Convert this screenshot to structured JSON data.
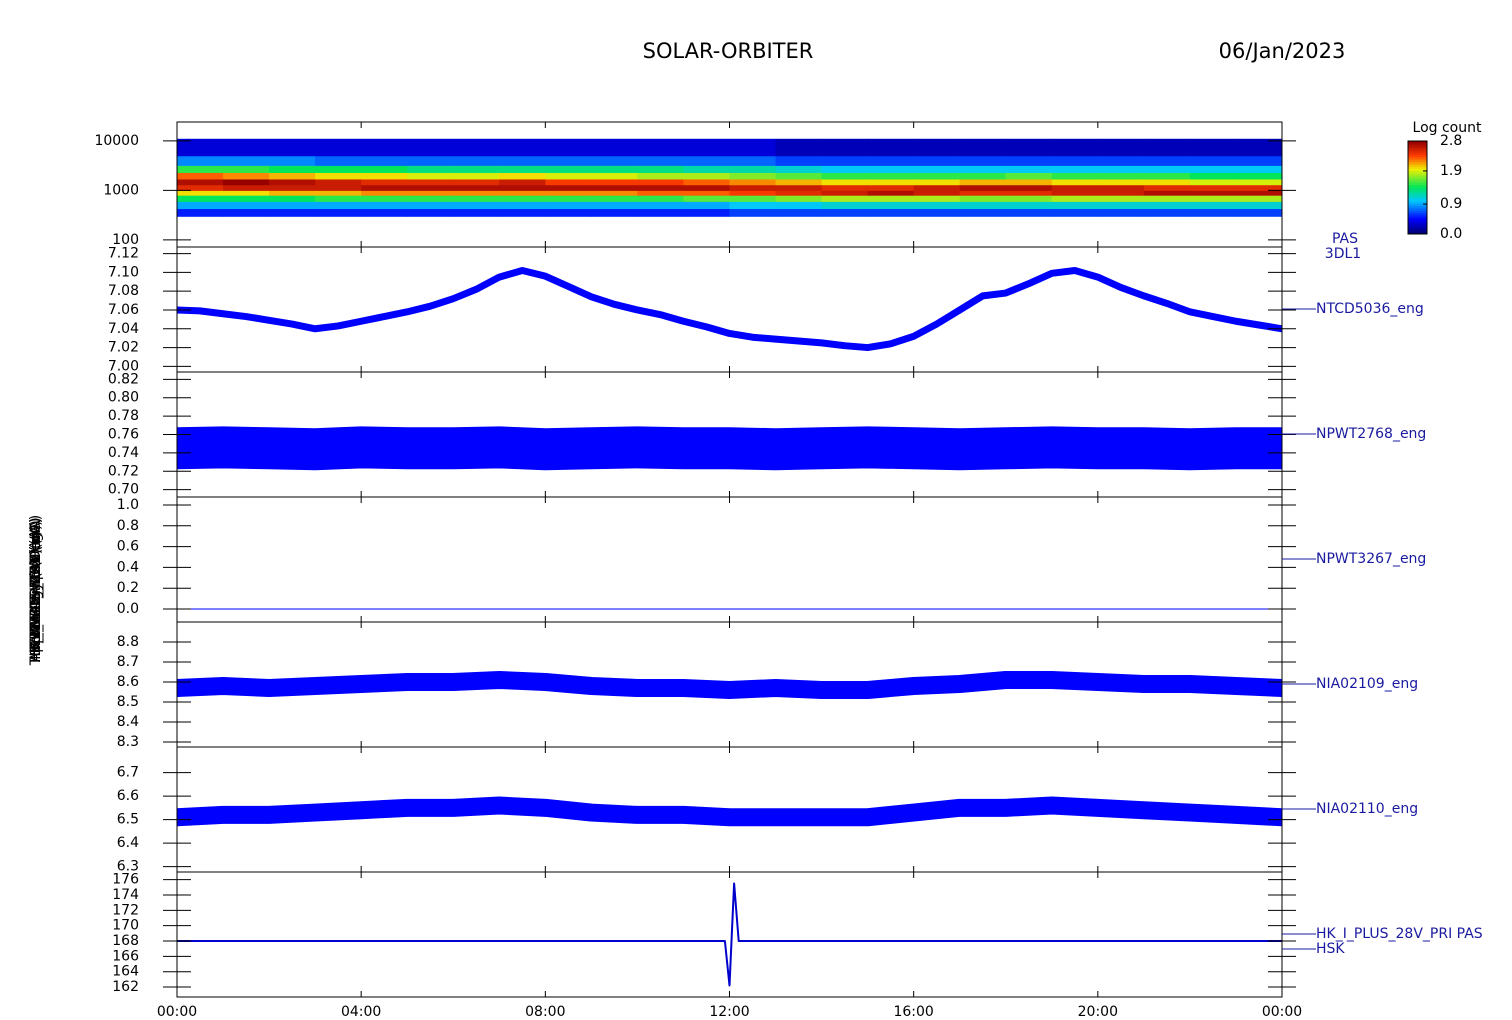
{
  "header": {
    "title": "SOLAR-ORBITER",
    "date": "06/Jan/2023"
  },
  "chart_data": [
    {
      "type": "heatmap",
      "ylabel": "Energy (eV)",
      "label_lines": [
        "PAS",
        "3DL1"
      ],
      "log_y": true,
      "ylim": [
        72,
        24000
      ],
      "yticks": [
        100,
        1000,
        10000
      ],
      "xlim": [
        0,
        24
      ],
      "x_bins": [
        0,
        1,
        2,
        3,
        4,
        5,
        6,
        7,
        8,
        9,
        10,
        11,
        12,
        13,
        14,
        15,
        16,
        17,
        18,
        19,
        20,
        21,
        22,
        23,
        24
      ],
      "y_bins": [
        300,
        430,
        600,
        800,
        1000,
        1300,
        1700,
        2300,
        3200,
        5000,
        11000
      ],
      "values": [
        [
          0.5,
          0.9,
          1.4,
          2.0,
          2.5,
          2.7,
          2.3,
          1.5,
          0.8,
          0.3
        ],
        [
          0.5,
          0.9,
          1.4,
          2.0,
          2.6,
          2.8,
          2.2,
          1.5,
          0.8,
          0.3
        ],
        [
          0.5,
          0.9,
          1.4,
          2.1,
          2.6,
          2.7,
          2.1,
          1.4,
          0.8,
          0.3
        ],
        [
          0.5,
          0.9,
          1.5,
          2.1,
          2.6,
          2.6,
          2.0,
          1.4,
          0.7,
          0.3
        ],
        [
          0.5,
          0.9,
          1.5,
          2.2,
          2.7,
          2.5,
          2.0,
          1.4,
          0.7,
          0.3
        ],
        [
          0.5,
          0.9,
          1.5,
          2.2,
          2.7,
          2.5,
          1.9,
          1.3,
          0.7,
          0.3
        ],
        [
          0.5,
          0.9,
          1.5,
          2.2,
          2.7,
          2.5,
          1.9,
          1.3,
          0.7,
          0.3
        ],
        [
          0.5,
          0.9,
          1.5,
          2.2,
          2.7,
          2.6,
          2.0,
          1.3,
          0.7,
          0.3
        ],
        [
          0.5,
          0.9,
          1.5,
          2.2,
          2.7,
          2.4,
          1.9,
          1.3,
          0.7,
          0.3
        ],
        [
          0.5,
          0.9,
          1.5,
          2.2,
          2.7,
          2.4,
          1.9,
          1.3,
          0.7,
          0.3
        ],
        [
          0.5,
          0.9,
          1.5,
          2.3,
          2.7,
          2.4,
          1.8,
          1.3,
          0.7,
          0.3
        ],
        [
          0.5,
          0.9,
          1.6,
          2.3,
          2.7,
          2.3,
          1.8,
          1.2,
          0.7,
          0.3
        ],
        [
          0.6,
          1.0,
          1.6,
          2.4,
          2.6,
          2.2,
          1.7,
          1.2,
          0.7,
          0.3
        ],
        [
          0.6,
          1.0,
          1.7,
          2.5,
          2.6,
          2.1,
          1.6,
          1.1,
          0.6,
          0.2
        ],
        [
          0.6,
          1.1,
          1.8,
          2.6,
          2.5,
          2.0,
          1.5,
          1.0,
          0.6,
          0.2
        ],
        [
          0.6,
          1.1,
          1.8,
          2.7,
          2.5,
          2.0,
          1.5,
          1.0,
          0.6,
          0.2
        ],
        [
          0.6,
          1.1,
          1.8,
          2.6,
          2.6,
          2.0,
          1.5,
          1.0,
          0.6,
          0.2
        ],
        [
          0.6,
          1.1,
          1.7,
          2.5,
          2.7,
          2.1,
          1.5,
          1.0,
          0.6,
          0.2
        ],
        [
          0.6,
          1.1,
          1.7,
          2.5,
          2.7,
          2.1,
          1.6,
          1.0,
          0.6,
          0.2
        ],
        [
          0.6,
          1.1,
          1.8,
          2.6,
          2.6,
          2.0,
          1.5,
          1.0,
          0.6,
          0.2
        ],
        [
          0.6,
          1.1,
          1.8,
          2.6,
          2.6,
          2.0,
          1.5,
          1.0,
          0.6,
          0.2
        ],
        [
          0.6,
          1.1,
          1.8,
          2.7,
          2.5,
          2.0,
          1.5,
          1.0,
          0.6,
          0.2
        ],
        [
          0.6,
          1.1,
          1.8,
          2.7,
          2.5,
          1.9,
          1.4,
          1.0,
          0.6,
          0.2
        ],
        [
          0.6,
          1.1,
          1.8,
          2.7,
          2.5,
          1.9,
          1.4,
          1.0,
          0.6,
          0.2
        ]
      ],
      "colorbar": {
        "label": "Log count",
        "lim": [
          0,
          2.8
        ],
        "ticks": [
          2.8,
          1.9,
          0.9,
          {
            "value": 0,
            "label": "0.0"
          }
        ]
      }
    },
    {
      "type": "line",
      "ylabel": "Approx Temp (DegC)",
      "label_lines": [
        "NTCD5036_eng"
      ],
      "color": "#0000ff",
      "band": 7,
      "ylim": [
        6.994,
        7.127
      ],
      "xlim": [
        0,
        24
      ],
      "yticks": [
        {
          "value": 7.0,
          "label": "7.00"
        },
        {
          "value": 7.02,
          "label": "7.02"
        },
        {
          "value": 7.04,
          "label": "7.04"
        },
        {
          "value": 7.06,
          "label": "7.06"
        },
        {
          "value": 7.08,
          "label": "7.08"
        },
        {
          "value": 7.1,
          "label": "7.10"
        },
        {
          "value": 7.12,
          "label": "7.12"
        }
      ],
      "x": [
        0,
        0.5,
        1,
        1.5,
        2,
        2.5,
        3,
        3.5,
        4,
        4.5,
        5,
        5.5,
        6,
        6.5,
        7,
        7.5,
        8,
        8.5,
        9,
        9.5,
        10,
        10.5,
        11,
        11.5,
        12,
        12.5,
        13,
        13.5,
        14,
        14.5,
        15,
        15.5,
        16,
        16.5,
        17,
        17.5,
        18,
        18.5,
        19,
        19.5,
        20,
        20.5,
        21,
        21.5,
        22,
        22.5,
        23,
        23.5,
        24
      ],
      "values": [
        7.06,
        7.059,
        7.056,
        7.053,
        7.049,
        7.045,
        7.04,
        7.043,
        7.048,
        7.053,
        7.058,
        7.064,
        7.072,
        7.082,
        7.095,
        7.102,
        7.096,
        7.085,
        7.074,
        7.066,
        7.06,
        7.055,
        7.048,
        7.042,
        7.035,
        7.031,
        7.029,
        7.027,
        7.025,
        7.022,
        7.02,
        7.024,
        7.032,
        7.045,
        7.06,
        7.075,
        7.078,
        7.088,
        7.099,
        7.102,
        7.095,
        7.084,
        7.075,
        7.067,
        7.058,
        7.053,
        7.048,
        7.044,
        7.04
      ]
    },
    {
      "type": "line",
      "ylabel": "SWA-EAS TEMP (A)",
      "label_lines": [
        "NPWT2768_eng"
      ],
      "color": "#0000ff",
      "band": 42,
      "ylim": [
        0.692,
        0.828
      ],
      "xlim": [
        0,
        24
      ],
      "yticks": [
        {
          "value": 0.7,
          "label": "0.70"
        },
        0.72,
        0.74,
        0.76,
        0.78,
        {
          "value": 0.8,
          "label": "0.80"
        },
        0.82
      ],
      "x": [
        0,
        1,
        2,
        3,
        4,
        5,
        6,
        7,
        8,
        9,
        10,
        11,
        12,
        13,
        14,
        15,
        16,
        17,
        18,
        19,
        20,
        21,
        22,
        23,
        24
      ],
      "values": [
        0.745,
        0.746,
        0.745,
        0.744,
        0.746,
        0.745,
        0.745,
        0.746,
        0.744,
        0.745,
        0.746,
        0.745,
        0.745,
        0.744,
        0.745,
        0.746,
        0.745,
        0.744,
        0.745,
        0.746,
        0.745,
        0.745,
        0.744,
        0.745,
        0.745
      ]
    },
    {
      "type": "line",
      "ylabel": "RPW LFR CAL (V)",
      "label_lines": [
        "NPWT3267_eng"
      ],
      "color": "#0000ff",
      "band": 1,
      "ylim": [
        -0.125,
        1.077
      ],
      "xlim": [
        0,
        24
      ],
      "yticks": [
        {
          "value": 0,
          "label": "0.0"
        },
        0.2,
        0.4,
        0.6,
        0.8,
        {
          "value": 1,
          "label": "1.0"
        }
      ],
      "x": [
        0,
        24
      ],
      "values": [
        0,
        0
      ]
    },
    {
      "type": "line",
      "ylabel": "THERMAL_IMON (mA)",
      "label_lines": [
        "NIA02109_eng"
      ],
      "color": "#0000ff",
      "band": 18,
      "ylim": [
        8.275,
        8.9
      ],
      "xlim": [
        0,
        24
      ],
      "yticks": [
        8.3,
        8.4,
        8.5,
        8.6,
        8.7,
        8.8
      ],
      "x": [
        0,
        1,
        2,
        3,
        4,
        5,
        6,
        7,
        8,
        9,
        10,
        11,
        12,
        13,
        14,
        15,
        16,
        17,
        18,
        19,
        20,
        21,
        22,
        23,
        24
      ],
      "values": [
        8.57,
        8.58,
        8.57,
        8.58,
        8.59,
        8.6,
        8.6,
        8.61,
        8.6,
        8.58,
        8.57,
        8.57,
        8.56,
        8.57,
        8.56,
        8.56,
        8.58,
        8.59,
        8.61,
        8.61,
        8.6,
        8.59,
        8.59,
        8.58,
        8.57
      ]
    },
    {
      "type": "line",
      "ylabel": "HK_IMON_PDU (mA)",
      "label_lines": [
        "NIA02110_eng"
      ],
      "color": "#0000ff",
      "band": 18,
      "ylim": [
        6.277,
        6.809
      ],
      "xlim": [
        0,
        24
      ],
      "yticks": [
        6.3,
        6.4,
        6.5,
        6.6,
        6.7
      ],
      "x": [
        0,
        1,
        2,
        3,
        4,
        5,
        6,
        7,
        8,
        9,
        10,
        11,
        12,
        13,
        14,
        15,
        16,
        17,
        18,
        19,
        20,
        21,
        22,
        23,
        24
      ],
      "values": [
        6.51,
        6.52,
        6.52,
        6.53,
        6.54,
        6.55,
        6.55,
        6.56,
        6.55,
        6.53,
        6.52,
        6.52,
        6.51,
        6.51,
        6.51,
        6.51,
        6.53,
        6.55,
        6.55,
        6.56,
        6.55,
        6.54,
        6.53,
        6.52,
        6.51
      ]
    },
    {
      "type": "line",
      "ylabel": "HK_I_PLUS_28V (mA)",
      "label_lines": [
        "HK_I_PLUS_28V_PRI PAS",
        "HSK"
      ],
      "color": "#0000cc",
      "band": 2,
      "ylim": [
        160.7,
        177.0
      ],
      "xlim": [
        0,
        24
      ],
      "yticks": [
        162,
        164,
        166,
        168,
        170,
        172,
        174,
        176
      ],
      "x": [
        0,
        2,
        4,
        6,
        8,
        10,
        11.9,
        12.0,
        12.1,
        12.2,
        14,
        16,
        18,
        20,
        22,
        24
      ],
      "values": [
        168,
        168,
        168,
        168,
        168,
        168,
        168,
        162.2,
        175.5,
        168,
        168,
        168,
        168,
        168,
        168,
        168
      ],
      "xticks": [
        {
          "value": 0,
          "label": "00:00"
        },
        {
          "value": 4,
          "label": "04:00"
        },
        {
          "value": 8,
          "label": "08:00"
        },
        {
          "value": 12,
          "label": "12:00"
        },
        {
          "value": 16,
          "label": "16:00"
        },
        {
          "value": 20,
          "label": "20:00"
        },
        {
          "value": 24,
          "label": "00:00"
        }
      ]
    }
  ]
}
